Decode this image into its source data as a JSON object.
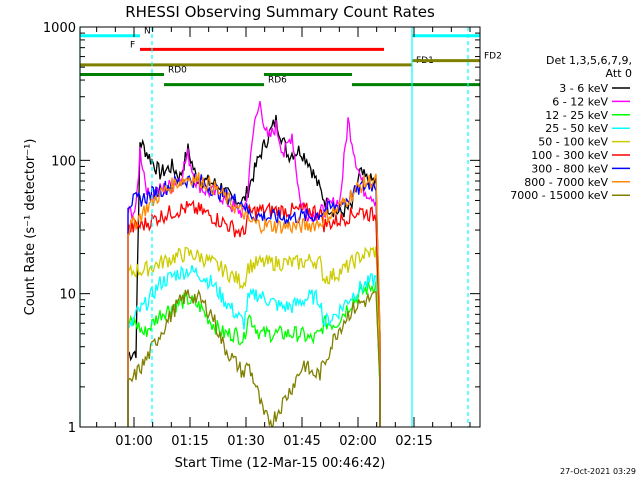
{
  "chart_data": {
    "type": "line",
    "title": "RHESSI Observing Summary Count Rates",
    "xlabel": "Start Time (12-Mar-15 00:46:42)",
    "ylabel": "Count Rate (s⁻¹ detector⁻¹)",
    "yscale": "log",
    "ylim": [
      1,
      1000
    ],
    "xlim": [
      0,
      100
    ],
    "x_ticks": [
      {
        "v": 13.5,
        "label": "01:00"
      },
      {
        "v": 27.5,
        "label": "01:15"
      },
      {
        "v": 41.5,
        "label": "01:30"
      },
      {
        "v": 55.5,
        "label": "01:45"
      },
      {
        "v": 69.5,
        "label": "02:00"
      },
      {
        "v": 83.5,
        "label": "02:15"
      }
    ],
    "y_ticks": [
      1,
      10,
      100,
      1000
    ],
    "legend_title_1": "Det 1,3,5,6,7,9,",
    "legend_title_2": "Att 0",
    "legend_position": "right",
    "grid": false,
    "series": [
      {
        "name": "3 - 6 keV",
        "color": "#000000",
        "points": [
          [
            12,
            3.5
          ],
          [
            14,
            3.7
          ],
          [
            15,
            140
          ],
          [
            17,
            110
          ],
          [
            20,
            80
          ],
          [
            23,
            90
          ],
          [
            25,
            75
          ],
          [
            27,
            120
          ],
          [
            29,
            75
          ],
          [
            31,
            70
          ],
          [
            35,
            65
          ],
          [
            38,
            50
          ],
          [
            41,
            50
          ],
          [
            42,
            60
          ],
          [
            45,
            110
          ],
          [
            47,
            150
          ],
          [
            49,
            200
          ],
          [
            52,
            110
          ],
          [
            55,
            120
          ],
          [
            57,
            100
          ],
          [
            60,
            60
          ],
          [
            62,
            45
          ],
          [
            65,
            40
          ],
          [
            68,
            45
          ],
          [
            70,
            80
          ],
          [
            72,
            70
          ],
          [
            74,
            70
          ],
          [
            75,
            4
          ]
        ]
      },
      {
        "name": "6 - 12 keV",
        "color": "#ff00ff",
        "points": [
          [
            12,
            40
          ],
          [
            14,
            42
          ],
          [
            15,
            120
          ],
          [
            17,
            55
          ],
          [
            20,
            60
          ],
          [
            23,
            65
          ],
          [
            25,
            75
          ],
          [
            27,
            110
          ],
          [
            29,
            70
          ],
          [
            31,
            60
          ],
          [
            35,
            55
          ],
          [
            38,
            45
          ],
          [
            41,
            40
          ],
          [
            42,
            60
          ],
          [
            43,
            150
          ],
          [
            45,
            270
          ],
          [
            47,
            140
          ],
          [
            49,
            180
          ],
          [
            51,
            110
          ],
          [
            53,
            160
          ],
          [
            55,
            50
          ],
          [
            57,
            40
          ],
          [
            60,
            40
          ],
          [
            62,
            45
          ],
          [
            65,
            50
          ],
          [
            67,
            200
          ],
          [
            69,
            100
          ],
          [
            71,
            60
          ],
          [
            73,
            55
          ],
          [
            74,
            50
          ],
          [
            75,
            4
          ]
        ]
      },
      {
        "name": "12 - 25 keV",
        "color": "#00ff00",
        "points": [
          [
            12,
            6
          ],
          [
            14,
            6
          ],
          [
            16,
            5
          ],
          [
            20,
            7
          ],
          [
            23,
            8
          ],
          [
            27,
            9
          ],
          [
            30,
            8
          ],
          [
            33,
            6
          ],
          [
            36,
            5
          ],
          [
            39,
            5
          ],
          [
            41,
            4.5
          ],
          [
            42,
            7
          ],
          [
            45,
            5
          ],
          [
            50,
            5
          ],
          [
            55,
            5
          ],
          [
            58,
            4.5
          ],
          [
            60,
            5
          ],
          [
            61,
            6
          ],
          [
            64,
            6
          ],
          [
            67,
            8
          ],
          [
            70,
            10
          ],
          [
            72,
            11
          ],
          [
            74,
            12
          ],
          [
            75,
            2
          ]
        ]
      },
      {
        "name": "25 - 50 keV",
        "color": "#00ffff",
        "points": [
          [
            12,
            5
          ],
          [
            14,
            7
          ],
          [
            16,
            8
          ],
          [
            20,
            12
          ],
          [
            24,
            14
          ],
          [
            27,
            15
          ],
          [
            30,
            14
          ],
          [
            33,
            12
          ],
          [
            36,
            9
          ],
          [
            39,
            7
          ],
          [
            41,
            6
          ],
          [
            42,
            9
          ],
          [
            44,
            10
          ],
          [
            47,
            9
          ],
          [
            50,
            8
          ],
          [
            53,
            8
          ],
          [
            56,
            9
          ],
          [
            58,
            9.5
          ],
          [
            60,
            9
          ],
          [
            61,
            6
          ],
          [
            64,
            7
          ],
          [
            67,
            9
          ],
          [
            70,
            11
          ],
          [
            72,
            12
          ],
          [
            74,
            13
          ],
          [
            75,
            2
          ]
        ]
      },
      {
        "name": "50 - 100 keV",
        "color": "#cccc00",
        "points": [
          [
            12,
            14
          ],
          [
            14,
            15
          ],
          [
            16,
            15
          ],
          [
            20,
            17
          ],
          [
            24,
            19
          ],
          [
            27,
            20
          ],
          [
            30,
            19
          ],
          [
            33,
            17
          ],
          [
            36,
            15
          ],
          [
            39,
            13
          ],
          [
            41,
            12
          ],
          [
            42,
            16
          ],
          [
            45,
            17
          ],
          [
            50,
            17
          ],
          [
            55,
            17
          ],
          [
            58,
            18
          ],
          [
            60,
            17
          ],
          [
            61,
            13
          ],
          [
            64,
            14
          ],
          [
            67,
            16
          ],
          [
            70,
            19
          ],
          [
            72,
            20
          ],
          [
            74,
            21
          ],
          [
            75,
            3
          ]
        ]
      },
      {
        "name": "100 - 300 keV",
        "color": "#ff0000",
        "points": [
          [
            12,
            30
          ],
          [
            14,
            32
          ],
          [
            16,
            33
          ],
          [
            20,
            38
          ],
          [
            24,
            42
          ],
          [
            27,
            44
          ],
          [
            30,
            42
          ],
          [
            33,
            38
          ],
          [
            36,
            34
          ],
          [
            39,
            30
          ],
          [
            41,
            28
          ],
          [
            42,
            40
          ],
          [
            45,
            42
          ],
          [
            50,
            42
          ],
          [
            55,
            42
          ],
          [
            58,
            42
          ],
          [
            60,
            41
          ],
          [
            61,
            33
          ],
          [
            64,
            35
          ],
          [
            67,
            38
          ],
          [
            70,
            42
          ],
          [
            72,
            40
          ],
          [
            74,
            38
          ],
          [
            75,
            5
          ]
        ]
      },
      {
        "name": "300 - 800 keV",
        "color": "#0000ff",
        "points": [
          [
            12,
            48
          ],
          [
            14,
            50
          ],
          [
            16,
            52
          ],
          [
            20,
            60
          ],
          [
            24,
            68
          ],
          [
            27,
            72
          ],
          [
            30,
            70
          ],
          [
            33,
            62
          ],
          [
            36,
            55
          ],
          [
            39,
            50
          ],
          [
            41,
            48
          ],
          [
            42,
            40
          ],
          [
            45,
            38
          ],
          [
            50,
            37
          ],
          [
            55,
            38
          ],
          [
            58,
            38
          ],
          [
            60,
            40
          ],
          [
            61,
            42
          ],
          [
            64,
            45
          ],
          [
            67,
            52
          ],
          [
            70,
            62
          ],
          [
            72,
            66
          ],
          [
            74,
            65
          ],
          [
            75,
            5
          ]
        ]
      },
      {
        "name": "800 - 7000 keV",
        "color": "#ff8800",
        "points": [
          [
            12,
            30
          ],
          [
            14,
            35
          ],
          [
            16,
            42
          ],
          [
            20,
            56
          ],
          [
            24,
            68
          ],
          [
            27,
            74
          ],
          [
            30,
            72
          ],
          [
            33,
            64
          ],
          [
            36,
            54
          ],
          [
            39,
            44
          ],
          [
            41,
            40
          ],
          [
            42,
            35
          ],
          [
            45,
            33
          ],
          [
            50,
            32
          ],
          [
            55,
            32
          ],
          [
            58,
            33
          ],
          [
            60,
            34
          ],
          [
            61,
            37
          ],
          [
            64,
            42
          ],
          [
            67,
            52
          ],
          [
            70,
            64
          ],
          [
            72,
            70
          ],
          [
            74,
            70
          ],
          [
            75,
            5
          ]
        ]
      },
      {
        "name": "7000 - 15000 keV",
        "color": "#808000",
        "points": [
          [
            12,
            2
          ],
          [
            14,
            2.5
          ],
          [
            16,
            3
          ],
          [
            20,
            5
          ],
          [
            24,
            8
          ],
          [
            27,
            10
          ],
          [
            30,
            9
          ],
          [
            33,
            7
          ],
          [
            36,
            4
          ],
          [
            39,
            3
          ],
          [
            41,
            2.5
          ],
          [
            42,
            3
          ],
          [
            44,
            2
          ],
          [
            46,
            1.2
          ],
          [
            48,
            1.1
          ],
          [
            50,
            1.4
          ],
          [
            53,
            2
          ],
          [
            56,
            3
          ],
          [
            58,
            2.5
          ],
          [
            60,
            2.5
          ],
          [
            61,
            3
          ],
          [
            64,
            5
          ],
          [
            67,
            7
          ],
          [
            70,
            8.5
          ],
          [
            72,
            9
          ],
          [
            74,
            9.5
          ],
          [
            75,
            2
          ]
        ]
      }
    ],
    "states": [
      {
        "label": "N",
        "color": "#00ffff",
        "y": 860,
        "segments": [
          [
            0,
            15
          ],
          [
            83,
            100
          ]
        ]
      },
      {
        "label": "F",
        "color": "#ff0000",
        "y": 680,
        "segments": [
          [
            15,
            76
          ]
        ]
      },
      {
        "label": "FD1",
        "color": "#808000",
        "y": 520,
        "segments": [
          [
            0,
            83
          ]
        ]
      },
      {
        "label": "FD2",
        "color": "#808000",
        "y": 560,
        "segments": [
          [
            83,
            100
          ]
        ]
      },
      {
        "label": "RD0",
        "color": "#008000",
        "y": 440,
        "segments": [
          [
            0,
            21
          ],
          [
            46,
            68
          ]
        ]
      },
      {
        "label": "RD6",
        "color": "#008000",
        "y": 370,
        "segments": [
          [
            21,
            46
          ],
          [
            68,
            100
          ]
        ]
      }
    ],
    "vlines": [
      0,
      18,
      83,
      97
    ]
  },
  "footer": {
    "timestamp": "27-Oct-2021 03:29"
  }
}
